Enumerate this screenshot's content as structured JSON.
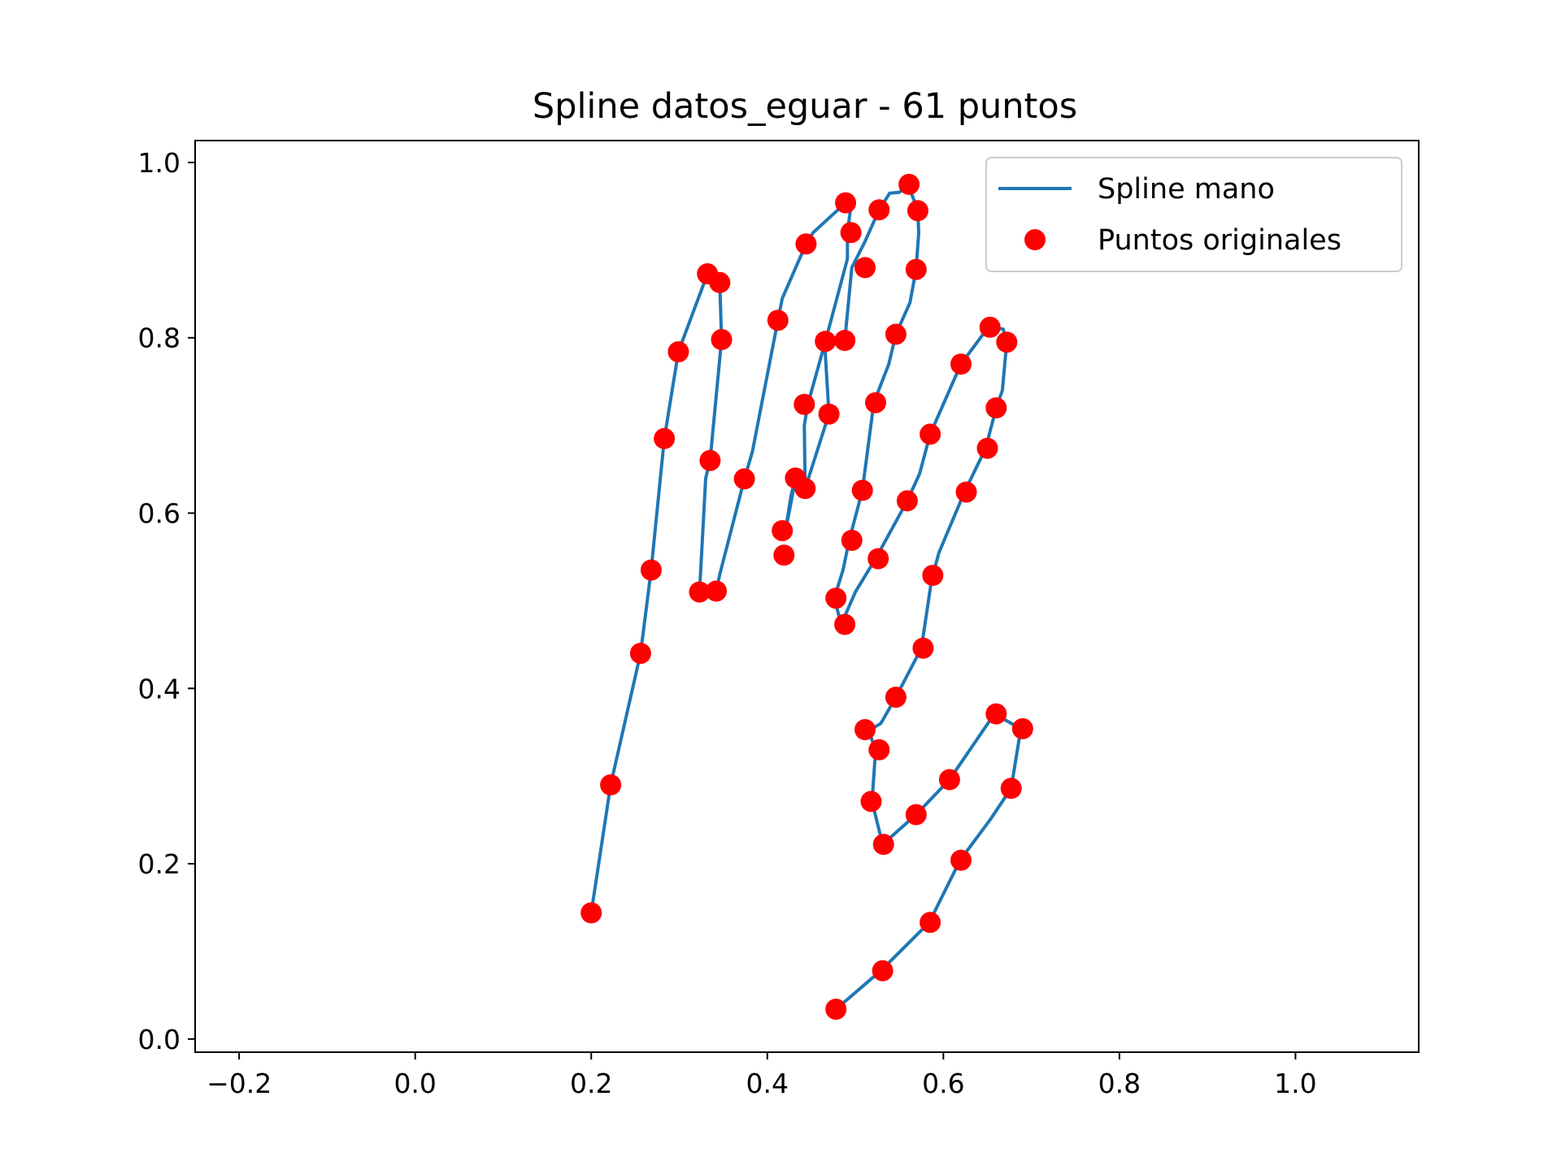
{
  "chart_data": {
    "type": "line",
    "title": "Spline datos_eguar - 61 puntos",
    "xlabel": "",
    "ylabel": "",
    "xlim": [
      -0.25,
      1.14
    ],
    "ylim": [
      -0.015,
      1.025
    ],
    "xticks": [
      -0.2,
      0.0,
      0.2,
      0.4,
      0.6,
      0.8,
      1.0
    ],
    "xtick_labels": [
      "−0.2",
      "0.0",
      "0.2",
      "0.4",
      "0.6",
      "0.8",
      "1.0"
    ],
    "yticks": [
      0.0,
      0.2,
      0.4,
      0.6,
      0.8,
      1.0
    ],
    "ytick_labels": [
      "0.0",
      "0.2",
      "0.4",
      "0.6",
      "0.8",
      "1.0"
    ],
    "grid": false,
    "legend_position": "top-right",
    "colors": {
      "spline": "#1f77b4",
      "points": "#ff0000"
    },
    "series": [
      {
        "name": "Spline mano",
        "style": "line",
        "x": [
          0.2,
          0.222,
          0.256,
          0.268,
          0.283,
          0.299,
          0.332,
          0.346,
          0.348,
          0.335,
          0.33,
          0.323,
          0.342,
          0.346,
          0.374,
          0.383,
          0.412,
          0.417,
          0.444,
          0.452,
          0.489,
          0.495,
          0.491,
          0.491,
          0.466,
          0.446,
          0.442,
          0.443,
          0.432,
          0.427,
          0.419,
          0.432,
          0.443,
          0.47,
          0.465,
          0.488,
          0.496,
          0.511,
          0.527,
          0.539,
          0.55,
          0.56,
          0.571,
          0.572,
          0.569,
          0.562,
          0.546,
          0.538,
          0.521,
          0.508,
          0.493,
          0.486,
          0.476,
          0.484,
          0.5,
          0.523,
          0.559,
          0.573,
          0.585,
          0.609,
          0.62,
          0.651,
          0.668,
          0.672,
          0.667,
          0.66,
          0.648,
          0.624,
          0.595,
          0.588,
          0.586,
          0.575,
          0.546,
          0.529,
          0.515,
          0.523,
          0.519,
          0.531,
          0.569,
          0.607,
          0.658,
          0.688,
          0.677,
          0.653,
          0.619,
          0.584,
          0.529,
          0.478
        ],
        "y": [
          0.144,
          0.29,
          0.44,
          0.535,
          0.685,
          0.784,
          0.873,
          0.863,
          0.798,
          0.66,
          0.64,
          0.51,
          0.511,
          0.53,
          0.639,
          0.67,
          0.82,
          0.845,
          0.907,
          0.92,
          0.954,
          0.95,
          0.92,
          0.89,
          0.796,
          0.724,
          0.7,
          0.63,
          0.64,
          0.62,
          0.57,
          0.639,
          0.628,
          0.713,
          0.796,
          0.797,
          0.88,
          0.91,
          0.946,
          0.965,
          0.966,
          0.975,
          0.945,
          0.92,
          0.878,
          0.84,
          0.804,
          0.77,
          0.726,
          0.626,
          0.569,
          0.535,
          0.503,
          0.473,
          0.51,
          0.548,
          0.614,
          0.645,
          0.69,
          0.745,
          0.77,
          0.812,
          0.81,
          0.795,
          0.74,
          0.72,
          0.674,
          0.624,
          0.555,
          0.529,
          0.52,
          0.446,
          0.39,
          0.36,
          0.352,
          0.33,
          0.271,
          0.222,
          0.256,
          0.296,
          0.371,
          0.354,
          0.286,
          0.25,
          0.204,
          0.133,
          0.078,
          0.034
        ]
      },
      {
        "name": "Puntos originales",
        "style": "markers",
        "x": [
          0.2,
          0.222,
          0.256,
          0.268,
          0.283,
          0.299,
          0.332,
          0.346,
          0.348,
          0.335,
          0.323,
          0.342,
          0.374,
          0.412,
          0.444,
          0.489,
          0.495,
          0.466,
          0.442,
          0.432,
          0.419,
          0.417,
          0.443,
          0.47,
          0.488,
          0.511,
          0.527,
          0.561,
          0.571,
          0.569,
          0.546,
          0.523,
          0.508,
          0.496,
          0.478,
          0.488,
          0.526,
          0.559,
          0.585,
          0.62,
          0.653,
          0.672,
          0.66,
          0.65,
          0.626,
          0.588,
          0.577,
          0.546,
          0.511,
          0.527,
          0.518,
          0.532,
          0.569,
          0.607,
          0.66,
          0.69,
          0.677,
          0.62,
          0.585,
          0.531,
          0.478
        ],
        "y": [
          0.144,
          0.29,
          0.44,
          0.535,
          0.685,
          0.784,
          0.873,
          0.863,
          0.798,
          0.66,
          0.51,
          0.511,
          0.639,
          0.82,
          0.907,
          0.954,
          0.92,
          0.796,
          0.724,
          0.64,
          0.552,
          0.58,
          0.628,
          0.713,
          0.797,
          0.88,
          0.946,
          0.975,
          0.945,
          0.878,
          0.804,
          0.726,
          0.626,
          0.569,
          0.503,
          0.473,
          0.548,
          0.614,
          0.69,
          0.77,
          0.812,
          0.795,
          0.72,
          0.674,
          0.624,
          0.529,
          0.446,
          0.39,
          0.353,
          0.33,
          0.271,
          0.222,
          0.256,
          0.296,
          0.371,
          0.354,
          0.286,
          0.204,
          0.133,
          0.078,
          0.034
        ]
      }
    ]
  }
}
